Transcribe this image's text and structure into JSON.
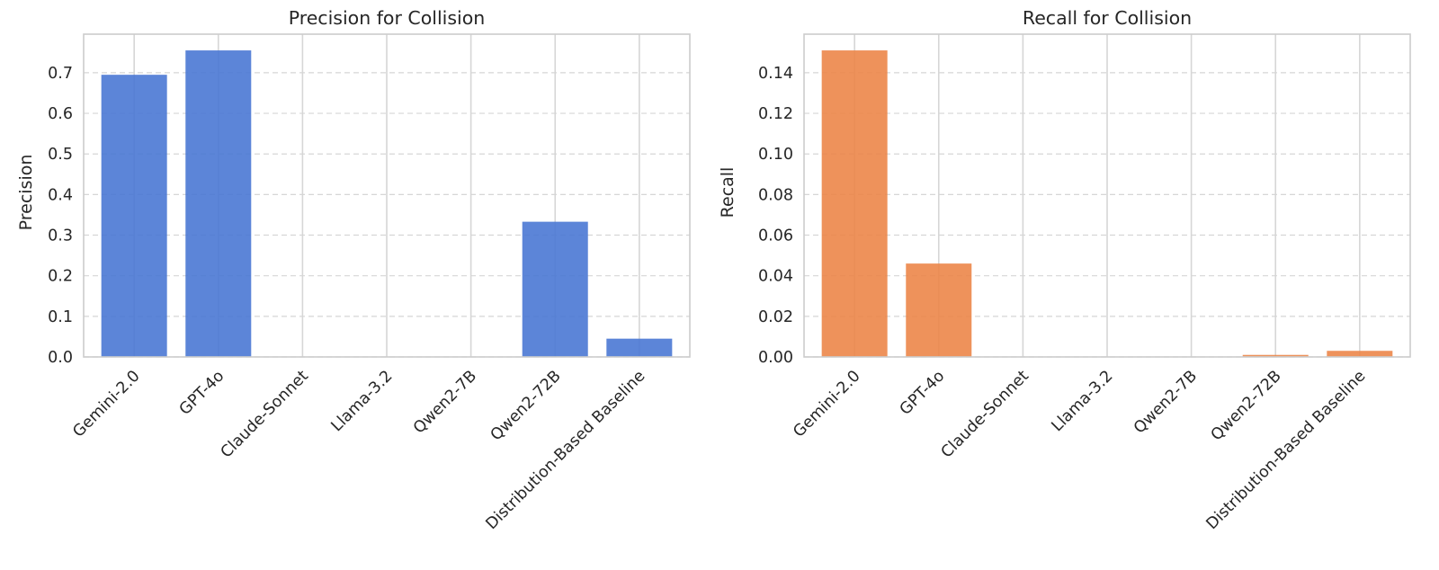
{
  "chart_data": [
    {
      "type": "bar",
      "title": "Precision for Collision",
      "xlabel": "",
      "ylabel": "Precision",
      "categories": [
        "Gemini-2.0",
        "GPT-4o",
        "Claude-Sonnet",
        "Llama-3.2",
        "Qwen2-7B",
        "Qwen2-72B",
        "Distribution-Based Baseline"
      ],
      "values": [
        0.695,
        0.755,
        0.0,
        0.0,
        0.0,
        0.333,
        0.045
      ],
      "ylim": [
        0,
        0.795
      ],
      "yticks": [
        0.0,
        0.1,
        0.2,
        0.3,
        0.4,
        0.5,
        0.6,
        0.7
      ],
      "ytick_labels": [
        "0.0",
        "0.1",
        "0.2",
        "0.3",
        "0.4",
        "0.5",
        "0.6",
        "0.7"
      ],
      "color": "#4a78d4",
      "grid": true
    },
    {
      "type": "bar",
      "title": "Recall for Collision",
      "xlabel": "",
      "ylabel": "Recall",
      "categories": [
        "Gemini-2.0",
        "GPT-4o",
        "Claude-Sonnet",
        "Llama-3.2",
        "Qwen2-7B",
        "Qwen2-72B",
        "Distribution-Based Baseline"
      ],
      "values": [
        0.151,
        0.046,
        0.0,
        0.0,
        0.0,
        0.001,
        0.003
      ],
      "ylim": [
        0,
        0.159
      ],
      "yticks": [
        0.0,
        0.02,
        0.04,
        0.06,
        0.08,
        0.1,
        0.12,
        0.14
      ],
      "ytick_labels": [
        "0.00",
        "0.02",
        "0.04",
        "0.06",
        "0.08",
        "0.10",
        "0.12",
        "0.14"
      ],
      "color": "#ec8649",
      "grid": true
    }
  ]
}
